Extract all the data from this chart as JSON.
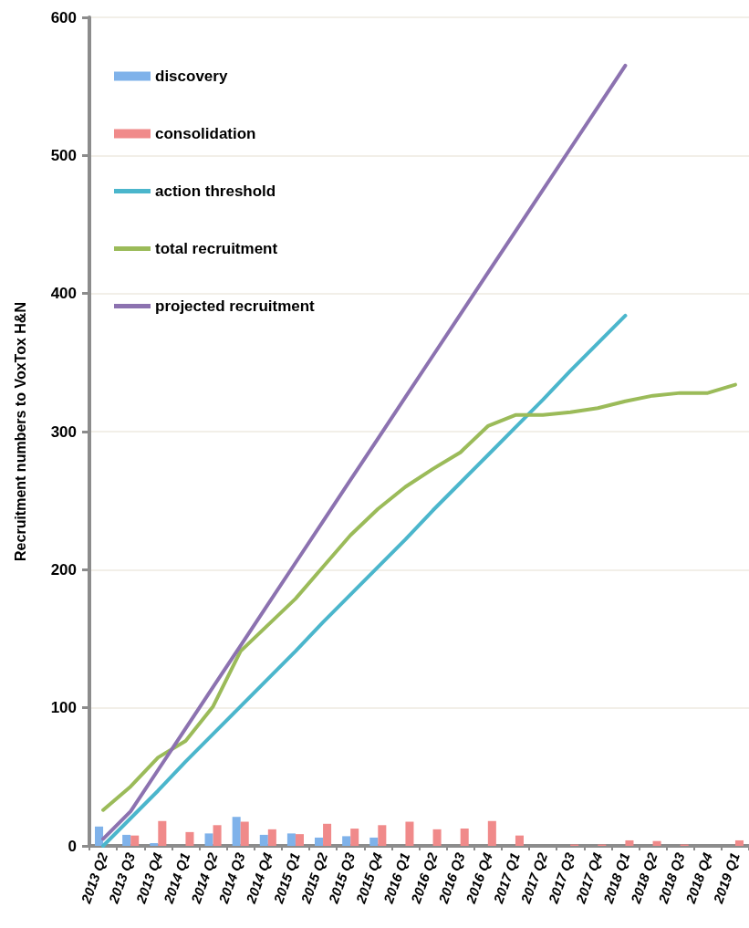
{
  "chart_data": {
    "type": "bar",
    "ylabel": "Recruitment numbers to VoxTox H&N",
    "categories": [
      "2013 Q2",
      "2013 Q3",
      "2013 Q4",
      "2014 Q1",
      "2014 Q2",
      "2014 Q3",
      "2014 Q4",
      "2015 Q1",
      "2015 Q2",
      "2015 Q3",
      "2015 Q4",
      "2016 Q1",
      "2016 Q2",
      "2016 Q3",
      "2016 Q4",
      "2017 Q1",
      "2017 Q2",
      "2017 Q3",
      "2017 Q4",
      "2018 Q1",
      "2018 Q2",
      "2018 Q3",
      "2018 Q4",
      "2019 Q1"
    ],
    "series": [
      {
        "name": "discovery",
        "color": "#7fb2ea",
        "values": [
          14,
          8,
          2,
          0,
          9,
          21,
          8,
          9,
          6,
          7,
          6,
          0,
          0,
          0,
          0,
          0,
          0,
          0,
          0,
          0,
          0,
          0,
          0,
          0
        ]
      },
      {
        "name": "consolidation",
        "color": "#f08a8a",
        "values": [
          null,
          7.5,
          18,
          10,
          15,
          17.5,
          12,
          8.5,
          16,
          12.5,
          15,
          17.5,
          12,
          12.5,
          18,
          7.5,
          0,
          1,
          1,
          4,
          3.5,
          1,
          0,
          4
        ]
      },
      {
        "name": "action threshold",
        "type": "line",
        "color": "#4bb6cc",
        "values": [
          0,
          20,
          40,
          61,
          81,
          101,
          121,
          141,
          162,
          182,
          202,
          222,
          243,
          263,
          283,
          303,
          323,
          344,
          364,
          384,
          null,
          null,
          null,
          null
        ]
      },
      {
        "name": "total recruitment",
        "type": "line",
        "color": "#9bbb59",
        "values": [
          26,
          43,
          64,
          76,
          101,
          141,
          160,
          179,
          202,
          225,
          244,
          260,
          273,
          285,
          304,
          312,
          312,
          314,
          317,
          322,
          326,
          328,
          328,
          334
        ]
      },
      {
        "name": "projected recruitment",
        "type": "line",
        "color": "#8c72b0",
        "values": [
          5,
          25,
          55,
          85,
          115,
          145,
          175,
          205,
          235,
          265,
          295,
          325,
          355,
          385,
          415,
          445,
          475,
          505,
          535,
          565,
          null,
          null,
          null,
          null
        ]
      }
    ],
    "ylim": [
      0,
      600
    ],
    "yticks": [
      0,
      100,
      200,
      300,
      400,
      500,
      600
    ],
    "grid": "y",
    "legend": "top left",
    "marker": "none"
  }
}
